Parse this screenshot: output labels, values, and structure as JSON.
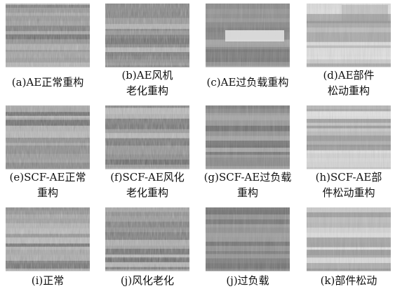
{
  "panels": [
    {
      "caption": [
        "(a)AE正常重构"
      ]
    },
    {
      "caption": [
        "(b)AE风机",
        "老化重构"
      ]
    },
    {
      "caption": [
        "(c)AE过负载重构"
      ]
    },
    {
      "caption": [
        "(d)AE部件",
        "松动重构"
      ]
    },
    {
      "caption": [
        "(e)SCF-AE正常",
        "重构"
      ]
    },
    {
      "caption": [
        "(f)SCF-AE风化",
        "老化重构"
      ]
    },
    {
      "caption": [
        "(g)SCF-AE过负载",
        "重构"
      ]
    },
    {
      "caption": [
        "(h)SCF-AE部",
        "件松动重构"
      ]
    },
    {
      "caption": [
        "(i)正常"
      ]
    },
    {
      "caption": [
        "(j)风化老化"
      ]
    },
    {
      "caption": [
        "(j)过负载"
      ]
    },
    {
      "caption": [
        "(k)部件松动"
      ]
    }
  ]
}
